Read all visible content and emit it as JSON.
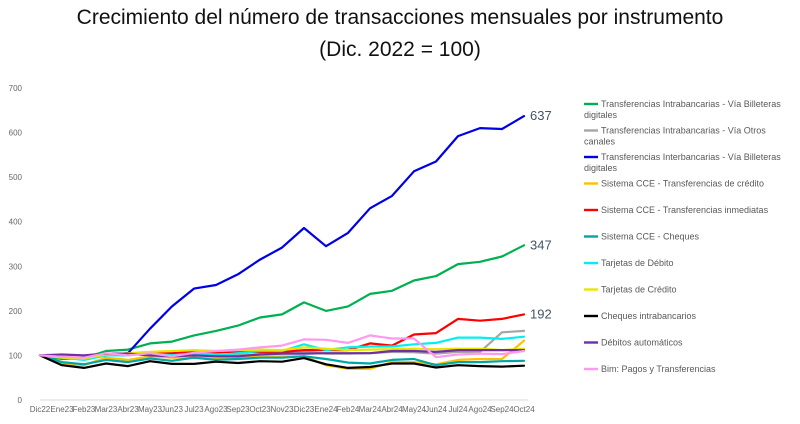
{
  "title_line1": "Crecimiento del número de transacciones mensuales por instrumento",
  "title_line2": "(Dic. 2022 = 100)",
  "chart_data": {
    "type": "line",
    "title": "Crecimiento del número de transacciones mensuales por instrumento (Dic. 2022 = 100)",
    "xlabel": "",
    "ylabel": "",
    "ylim": [
      0,
      700
    ],
    "yticks": [
      0,
      100,
      200,
      300,
      400,
      500,
      600,
      700
    ],
    "grid": false,
    "legend_position": "right",
    "x": [
      "Dic22",
      "Ene23",
      "Feb23",
      "Mar23",
      "Abr23",
      "May23",
      "Jun23",
      "Jul23",
      "Ago23",
      "Sep23",
      "Oct23",
      "Nov23",
      "Dic23",
      "Ene24",
      "Feb24",
      "Mar24",
      "Abr24",
      "May24",
      "Jun24",
      "Jul24",
      "Ago24",
      "Sep24",
      "Oct24"
    ],
    "end_labels": [
      {
        "series": 2,
        "text": "637"
      },
      {
        "series": 0,
        "text": "347"
      },
      {
        "series": 4,
        "text": "192"
      }
    ],
    "series": [
      {
        "name": "Transferencias Intrabancarias - Vía Billeteras digitales",
        "color": "#00b050",
        "values": [
          100,
          92,
          94,
          110,
          113,
          127,
          131,
          145,
          155,
          167,
          185,
          192,
          219,
          200,
          210,
          238,
          245,
          268,
          278,
          305,
          310,
          322,
          347
        ]
      },
      {
        "name": "Transferencias Intrabancarias - Vía Otros canales",
        "color": "#a6a6a6",
        "values": [
          100,
          96,
          95,
          100,
          103,
          102,
          98,
          100,
          102,
          101,
          103,
          104,
          108,
          104,
          104,
          105,
          108,
          107,
          104,
          108,
          108,
          152,
          155
        ]
      },
      {
        "name": "Transferencias Interbancarias - Vía Billeteras digitales",
        "color": "#0000e6",
        "values": [
          100,
          95,
          95,
          100,
          105,
          160,
          210,
          250,
          258,
          282,
          315,
          342,
          386,
          345,
          375,
          430,
          458,
          513,
          535,
          592,
          610,
          608,
          637
        ]
      },
      {
        "name": "Sistema CCE - Transferencias de crédito",
        "color": "#ffc000",
        "values": [
          100,
          82,
          78,
          95,
          90,
          98,
          95,
          95,
          93,
          96,
          97,
          98,
          98,
          78,
          70,
          70,
          85,
          85,
          80,
          90,
          92,
          92,
          133
        ]
      },
      {
        "name": "Sistema CCE - Transferencias inmediatas",
        "color": "#ff0000",
        "values": [
          100,
          95,
          92,
          100,
          105,
          105,
          105,
          108,
          107,
          108,
          108,
          108,
          112,
          112,
          112,
          127,
          122,
          147,
          150,
          182,
          178,
          182,
          192
        ]
      },
      {
        "name": "Sistema CCE - Cheques",
        "color": "#00a6a6",
        "values": [
          100,
          85,
          80,
          90,
          85,
          93,
          88,
          95,
          90,
          92,
          95,
          95,
          98,
          92,
          84,
          82,
          90,
          92,
          78,
          85,
          85,
          87,
          88
        ]
      },
      {
        "name": "Tarjetas de Débito",
        "color": "#00f0f0",
        "values": [
          100,
          95,
          90,
          100,
          100,
          105,
          100,
          105,
          100,
          105,
          110,
          110,
          125,
          112,
          118,
          120,
          120,
          125,
          128,
          140,
          140,
          137,
          142
        ]
      },
      {
        "name": "Tarjetas de Crédito",
        "color": "#e6e600",
        "values": [
          100,
          95,
          93,
          102,
          105,
          108,
          110,
          112,
          110,
          112,
          113,
          112,
          118,
          115,
          112,
          113,
          114,
          115,
          114,
          115,
          115,
          112,
          115
        ]
      },
      {
        "name": "Cheques intrabancarios",
        "color": "#000000",
        "values": [
          100,
          78,
          72,
          82,
          76,
          87,
          81,
          81,
          86,
          83,
          87,
          86,
          94,
          80,
          72,
          74,
          82,
          82,
          73,
          78,
          76,
          75,
          77
        ]
      },
      {
        "name": "Débitos automáticos",
        "color": "#7030a0",
        "values": [
          100,
          102,
          100,
          104,
          104,
          100,
          98,
          100,
          98,
          98,
          102,
          104,
          104,
          105,
          105,
          105,
          110,
          110,
          108,
          112,
          112,
          112,
          112
        ]
      },
      {
        "name": "Bim: Pagos y Transferencias",
        "color": "#ff99ee",
        "values": [
          100,
          97,
          95,
          105,
          100,
          105,
          98,
          106,
          110,
          113,
          118,
          122,
          136,
          135,
          128,
          145,
          138,
          138,
          96,
          102,
          104,
          103,
          110
        ]
      }
    ]
  }
}
